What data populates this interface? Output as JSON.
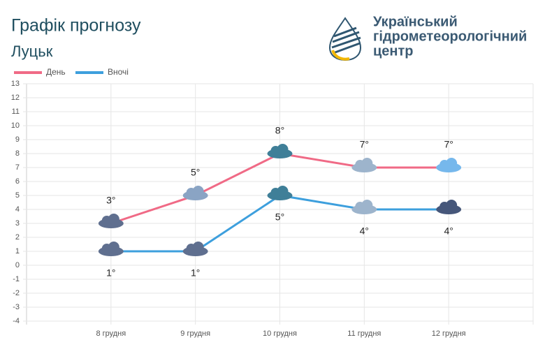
{
  "chart_data": {
    "type": "line",
    "title": "Графік прогнозу",
    "subtitle": "Луцьк",
    "source_lines": [
      "Український",
      "гідрометеорологічний",
      "центр"
    ],
    "categories": [
      "8 грудня",
      "9 грудня",
      "10 грудня",
      "11 грудня",
      "12 грудня"
    ],
    "series": [
      {
        "name": "День",
        "color": "#f06a86",
        "values": [
          3,
          5,
          8,
          7,
          7
        ],
        "value_labels": [
          "3°",
          "5°",
          "8°",
          "7°",
          "7°"
        ]
      },
      {
        "name": "Вночі",
        "color": "#3d9fdd",
        "values": [
          1,
          1,
          5,
          4,
          4
        ],
        "value_labels": [
          "1°",
          "1°",
          "5°",
          "4°",
          "4°"
        ]
      }
    ],
    "ylim": [
      -4,
      13
    ],
    "yticks": [
      -4,
      -3,
      -2,
      -1,
      0,
      1,
      2,
      3,
      4,
      5,
      6,
      7,
      8,
      9,
      10,
      11,
      12,
      13
    ],
    "grid": true,
    "legend": "top-left"
  }
}
